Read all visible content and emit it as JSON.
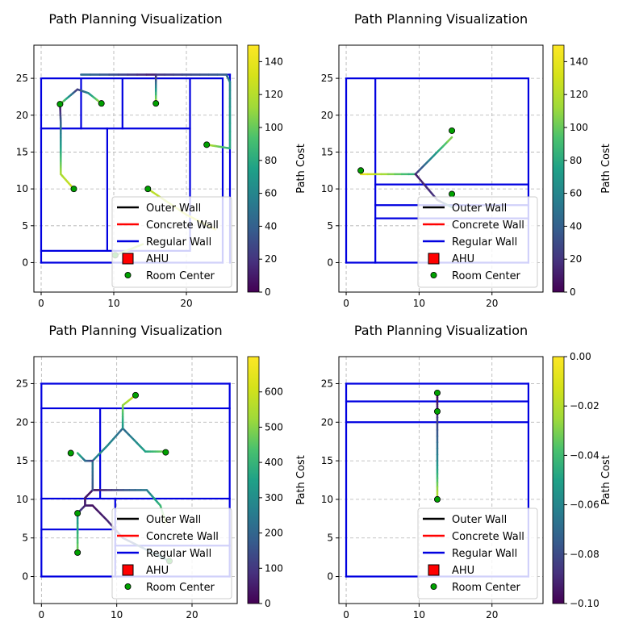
{
  "chart_data": [
    {
      "type": "line",
      "title": "Path Planning Visualization",
      "xlim": [
        -1,
        27
      ],
      "ylim": [
        -4,
        29.5
      ],
      "xticks": [
        0,
        10,
        20
      ],
      "yticks": [
        0,
        5,
        10,
        15,
        20,
        25
      ],
      "grid": true,
      "legend": {
        "placement": "lower-right",
        "entries": [
          "Outer Wall",
          "Concrete Wall",
          "Regular Wall",
          "AHU",
          "Room Center"
        ]
      },
      "colorbar": {
        "label": "Path Cost",
        "range": [
          0,
          150
        ],
        "ticks": [
          0,
          20,
          40,
          60,
          80,
          100,
          120,
          140
        ]
      },
      "walls": [
        [
          [
            0,
            25
          ],
          [
            25,
            25
          ]
        ],
        [
          [
            25,
            25
          ],
          [
            25,
            0
          ]
        ],
        [
          [
            0,
            0
          ],
          [
            25,
            0
          ]
        ],
        [
          [
            0,
            0
          ],
          [
            0,
            25
          ]
        ],
        [
          [
            0,
            18.2
          ],
          [
            20.5,
            18.2
          ]
        ],
        [
          [
            5.5,
            25
          ],
          [
            5.5,
            18.2
          ]
        ],
        [
          [
            11.2,
            25
          ],
          [
            11.2,
            18.2
          ]
        ],
        [
          [
            9.1,
            18.2
          ],
          [
            9.1,
            1.6
          ]
        ],
        [
          [
            20.5,
            25
          ],
          [
            20.5,
            1.6
          ]
        ],
        [
          [
            0,
            1.6
          ],
          [
            20.5,
            1.6
          ]
        ],
        [
          [
            5.5,
            25.5
          ],
          [
            26,
            25.5
          ]
        ],
        [
          [
            26,
            25.5
          ],
          [
            26,
            0
          ]
        ]
      ],
      "paths": [
        {
          "points": [
            [
              2.6,
              21.5
            ],
            [
              2.7,
              19.0
            ],
            [
              2.7,
              15.0
            ],
            [
              2.7,
              12.0
            ],
            [
              4.5,
              10.0
            ]
          ],
          "cost": [
            0,
            40,
            80,
            115,
            130
          ]
        },
        {
          "points": [
            [
              2.6,
              21.5
            ],
            [
              5.0,
              23.5
            ],
            [
              6.5,
              23.0
            ],
            [
              8.3,
              21.6
            ]
          ],
          "cost": [
            120,
            20,
            60,
            120
          ]
        },
        {
          "points": [
            [
              5.5,
              25.5
            ],
            [
              15.8,
              25.5
            ],
            [
              15.8,
              21.6
            ]
          ],
          "cost": [
            50,
            10,
            120
          ]
        },
        {
          "points": [
            [
              15.8,
              25.5
            ],
            [
              25.5,
              25.5
            ],
            [
              26,
              24.5
            ],
            [
              26,
              15.5
            ],
            [
              22.8,
              16.0
            ]
          ],
          "cost": [
            20,
            40,
            60,
            80,
            120
          ]
        },
        {
          "points": [
            [
              14.7,
              10.0
            ],
            [
              20.0,
              6.5
            ],
            [
              24.0,
              4.5
            ]
          ],
          "cost": [
            120,
            130,
            140
          ]
        },
        {
          "points": [
            [
              10.2,
              1.0
            ],
            [
              14.0,
              2.5
            ]
          ],
          "cost": [
            100,
            120
          ]
        }
      ],
      "room_centers": [
        [
          2.6,
          21.5
        ],
        [
          8.3,
          21.6
        ],
        [
          15.8,
          21.6
        ],
        [
          22.8,
          16.0
        ],
        [
          4.5,
          10.0
        ],
        [
          14.7,
          10.0
        ],
        [
          10.2,
          1.0
        ]
      ]
    },
    {
      "type": "line",
      "title": "Path Planning Visualization",
      "xlim": [
        -1,
        27
      ],
      "ylim": [
        -4,
        29.5
      ],
      "xticks": [
        0,
        10,
        20
      ],
      "yticks": [
        0,
        5,
        10,
        15,
        20,
        25
      ],
      "grid": true,
      "legend": {
        "placement": "lower-right",
        "entries": [
          "Outer Wall",
          "Concrete Wall",
          "Regular Wall",
          "AHU",
          "Room Center"
        ]
      },
      "colorbar": {
        "label": "Path Cost",
        "range": [
          0,
          150
        ],
        "ticks": [
          0,
          20,
          40,
          60,
          80,
          100,
          120,
          140
        ]
      },
      "walls": [
        [
          [
            0,
            25
          ],
          [
            25,
            25
          ]
        ],
        [
          [
            25,
            25
          ],
          [
            25,
            0
          ]
        ],
        [
          [
            0,
            0
          ],
          [
            25,
            0
          ]
        ],
        [
          [
            0,
            0
          ],
          [
            0,
            25
          ]
        ],
        [
          [
            4,
            25
          ],
          [
            4,
            0
          ]
        ],
        [
          [
            4,
            10.6
          ],
          [
            25,
            10.6
          ]
        ],
        [
          [
            4,
            7.8
          ],
          [
            25,
            7.8
          ]
        ],
        [
          [
            4,
            6.0
          ],
          [
            25,
            6.0
          ]
        ]
      ],
      "paths": [
        {
          "points": [
            [
              2.0,
              12.0
            ],
            [
              9.5,
              12.0
            ]
          ],
          "cost": [
            140,
            80
          ]
        },
        {
          "points": [
            [
              9.5,
              12.0
            ],
            [
              14.5,
              17.0
            ]
          ],
          "cost": [
            20,
            110
          ]
        },
        {
          "points": [
            [
              9.5,
              12.0
            ],
            [
              12.5,
              8.5
            ],
            [
              14.5,
              7.5
            ]
          ],
          "cost": [
            10,
            20,
            60
          ]
        }
      ],
      "room_centers": [
        [
          2.0,
          12.5
        ],
        [
          14.5,
          17.9
        ],
        [
          14.5,
          9.3
        ]
      ]
    },
    {
      "type": "line",
      "title": "Path Planning Visualization",
      "xlim": [
        -1,
        26
      ],
      "ylim": [
        -3.5,
        28.5
      ],
      "xticks": [
        0,
        10,
        20
      ],
      "yticks": [
        0,
        5,
        10,
        15,
        20,
        25
      ],
      "grid": true,
      "legend": {
        "placement": "lower-right",
        "entries": [
          "Outer Wall",
          "Concrete Wall",
          "Regular Wall",
          "AHU",
          "Room Center"
        ]
      },
      "colorbar": {
        "label": "Path Cost",
        "range": [
          0,
          700
        ],
        "ticks": [
          0,
          100,
          200,
          300,
          400,
          500,
          600
        ]
      },
      "walls": [
        [
          [
            0,
            25
          ],
          [
            25,
            25
          ]
        ],
        [
          [
            25,
            25
          ],
          [
            25,
            0
          ]
        ],
        [
          [
            0,
            0
          ],
          [
            25,
            0
          ]
        ],
        [
          [
            0,
            0
          ],
          [
            0,
            25
          ]
        ],
        [
          [
            0,
            21.8
          ],
          [
            25,
            21.8
          ]
        ],
        [
          [
            7.8,
            21.8
          ],
          [
            7.8,
            10.1
          ]
        ],
        [
          [
            0,
            10.1
          ],
          [
            25,
            10.1
          ]
        ],
        [
          [
            0,
            6.1
          ],
          [
            9.8,
            6.1
          ]
        ],
        [
          [
            9.8,
            10.1
          ],
          [
            9.8,
            0
          ]
        ],
        [
          [
            9.8,
            4.0
          ],
          [
            25,
            4.0
          ]
        ]
      ],
      "paths": [
        {
          "points": [
            [
              4.8,
              3.1
            ],
            [
              4.8,
              8.2
            ]
          ],
          "cost": [
            500,
            300
          ]
        },
        {
          "points": [
            [
              4.8,
              8.2
            ],
            [
              5.8,
              9.2
            ],
            [
              6.8,
              9.2
            ],
            [
              8.8,
              7.2
            ],
            [
              10.8,
              5.0
            ],
            [
              17.0,
              2.0
            ]
          ],
          "cost": [
            150,
            60,
            30,
            60,
            120,
            300
          ]
        },
        {
          "points": [
            [
              5.8,
              9.2
            ],
            [
              5.8,
              10.2
            ],
            [
              6.8,
              11.2
            ],
            [
              7.8,
              11.2
            ],
            [
              14.0,
              11.2
            ],
            [
              15.8,
              9.2
            ],
            [
              16.5,
              7.0
            ]
          ],
          "cost": [
            60,
            40,
            30,
            50,
            250,
            400,
            550
          ]
        },
        {
          "points": [
            [
              6.8,
              11.2
            ],
            [
              6.8,
              15.0
            ],
            [
              8.8,
              17.0
            ],
            [
              10.8,
              19.2
            ],
            [
              13.8,
              16.2
            ],
            [
              16.5,
              16.2
            ]
          ],
          "cost": [
            150,
            250,
            300,
            200,
            350,
            500
          ]
        },
        {
          "points": [
            [
              6.8,
              15.0
            ],
            [
              5.8,
              15.0
            ],
            [
              4.8,
              16.0
            ]
          ],
          "cost": [
            100,
            200,
            400
          ]
        },
        {
          "points": [
            [
              10.8,
              19.2
            ],
            [
              10.8,
              22.2
            ],
            [
              12.5,
              23.5
            ]
          ],
          "cost": [
            300,
            500,
            600
          ]
        }
      ],
      "room_centers": [
        [
          4.8,
          3.1
        ],
        [
          4.8,
          8.2
        ],
        [
          3.9,
          16.0
        ],
        [
          16.5,
          16.1
        ],
        [
          12.5,
          23.5
        ],
        [
          17.0,
          2.0
        ]
      ]
    },
    {
      "type": "line",
      "title": "Path Planning Visualization",
      "xlim": [
        -1,
        27
      ],
      "ylim": [
        -3.5,
        28.5
      ],
      "xticks": [
        0,
        10,
        20
      ],
      "yticks": [
        0,
        5,
        10,
        15,
        20,
        25
      ],
      "grid": true,
      "legend": {
        "placement": "lower-right",
        "entries": [
          "Outer Wall",
          "Concrete Wall",
          "Regular Wall",
          "AHU",
          "Room Center"
        ]
      },
      "colorbar": {
        "label": "Path Cost",
        "range": [
          -0.1,
          0.0
        ],
        "ticks": [
          -0.1,
          -0.08,
          -0.06,
          -0.04,
          -0.02,
          0.0
        ]
      },
      "walls": [
        [
          [
            0,
            25
          ],
          [
            25,
            25
          ]
        ],
        [
          [
            25,
            25
          ],
          [
            25,
            0
          ]
        ],
        [
          [
            0,
            0
          ],
          [
            25,
            0
          ]
        ],
        [
          [
            0,
            0
          ],
          [
            0,
            25
          ]
        ],
        [
          [
            0,
            22.7
          ],
          [
            25,
            22.7
          ]
        ],
        [
          [
            0,
            20.0
          ],
          [
            25,
            20.0
          ]
        ]
      ],
      "paths": [
        {
          "points": [
            [
              12.5,
              23.8
            ],
            [
              12.5,
              21.4
            ],
            [
              12.5,
              15.0
            ],
            [
              12.5,
              10.5
            ]
          ],
          "cost": [
            -0.1,
            -0.09,
            -0.06,
            -0.02
          ]
        }
      ],
      "room_centers": [
        [
          12.5,
          23.8
        ],
        [
          12.5,
          21.4
        ],
        [
          12.5,
          10.0
        ]
      ]
    }
  ]
}
